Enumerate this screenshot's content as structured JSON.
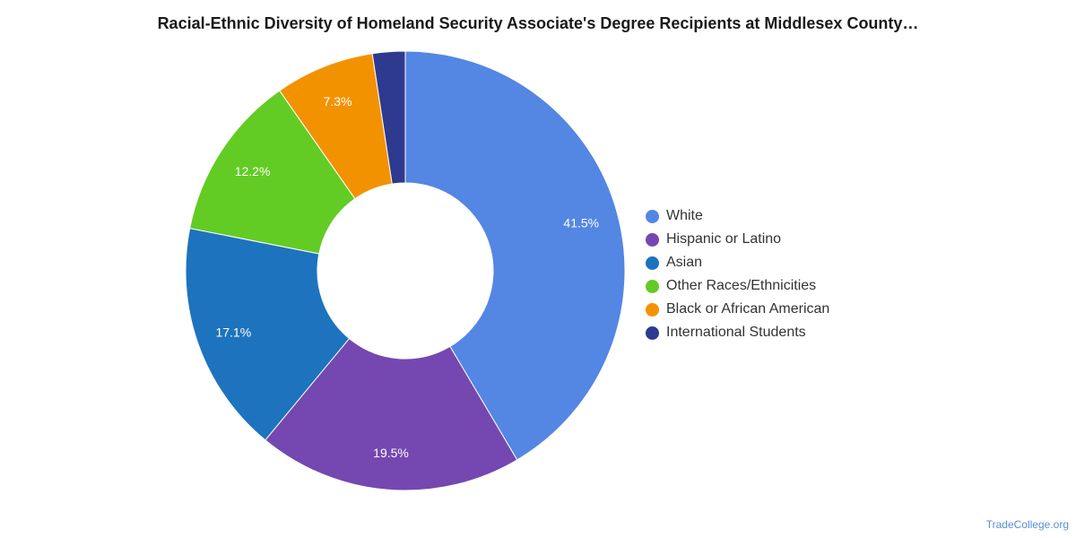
{
  "chart_data": {
    "type": "pie",
    "title": "Racial-Ethnic Diversity of Homeland Security Associate's Degree Recipients at Middlesex County…",
    "legend_position": "right",
    "donut": true,
    "slices": [
      {
        "label": "White",
        "value": 41.5,
        "value_label": "41.5%",
        "color": "#5486e3"
      },
      {
        "label": "Hispanic or Latino",
        "value": 19.5,
        "value_label": "19.5%",
        "color": "#7547b0"
      },
      {
        "label": "Asian",
        "value": 17.1,
        "value_label": "17.1%",
        "color": "#1e73be"
      },
      {
        "label": "Other Races/Ethnicities",
        "value": 12.2,
        "value_label": "12.2%",
        "color": "#62cc24"
      },
      {
        "label": "Black or African American",
        "value": 7.3,
        "value_label": "7.3%",
        "color": "#f39200"
      },
      {
        "label": "International Students",
        "value": 2.4,
        "value_label": "",
        "color": "#2e3a8f"
      }
    ]
  },
  "credit": "TradeCollege.org"
}
